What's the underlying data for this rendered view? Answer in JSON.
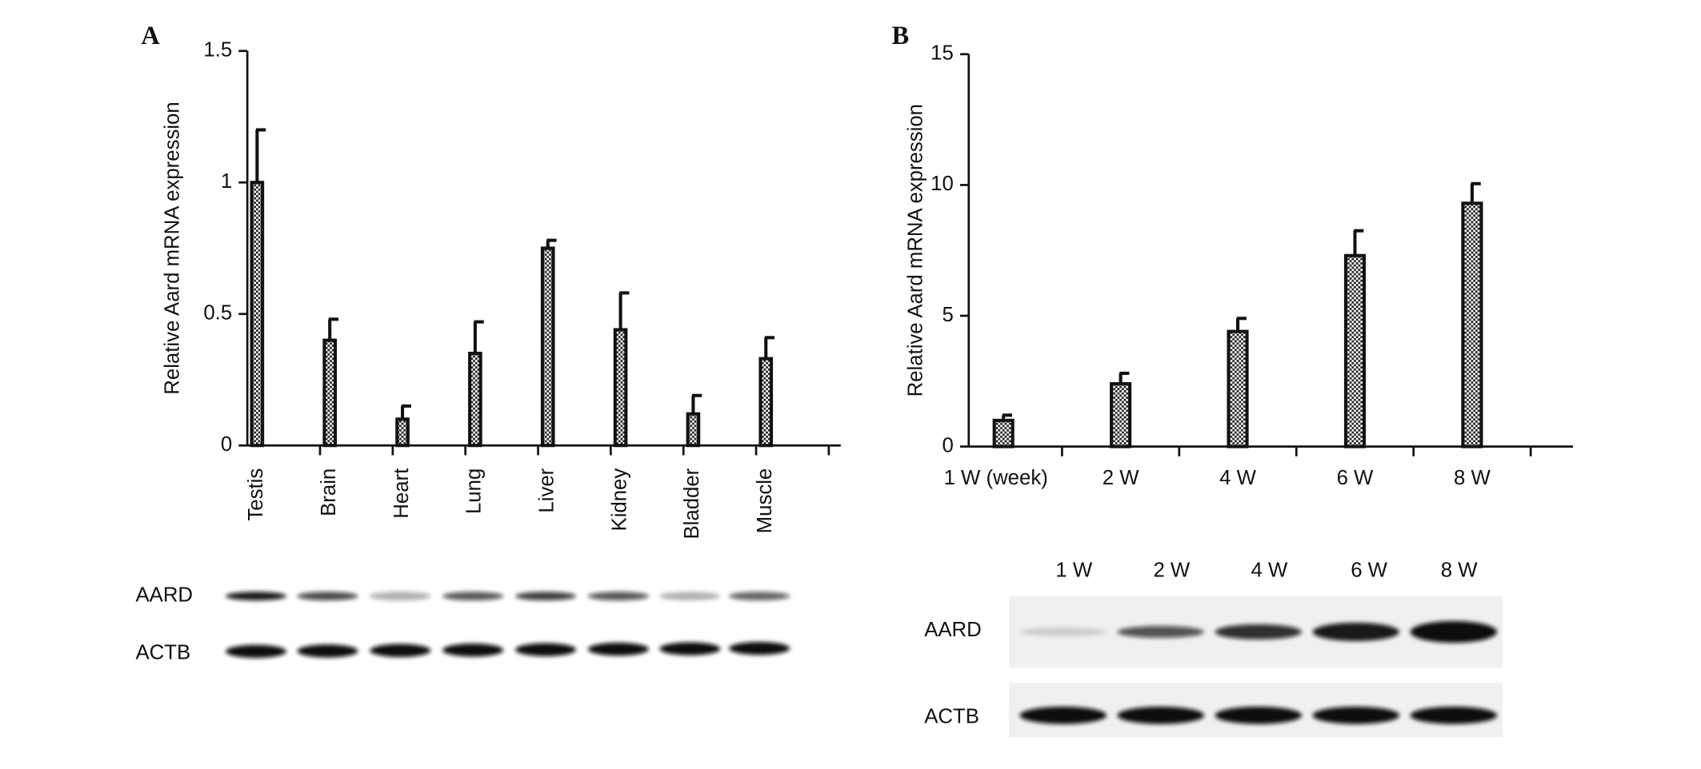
{
  "chart_data": [
    {
      "type": "bar",
      "panel": "A",
      "y_label": "Relative Aard mRNA expression",
      "categories": [
        "Testis",
        "Brain",
        "Heart",
        "Lung",
        "Liver",
        "Kidney",
        "Bladder",
        "Muscle"
      ],
      "values": [
        1.0,
        0.4,
        0.1,
        0.35,
        0.75,
        0.44,
        0.12,
        0.33
      ],
      "errors": [
        0.2,
        0.08,
        0.05,
        0.12,
        0.03,
        0.14,
        0.07,
        0.08
      ],
      "color": "#111111",
      "ylim": [
        0,
        1.5
      ],
      "yticks": [
        0,
        0.5,
        1,
        1.5
      ]
    },
    {
      "type": "bar",
      "panel": "B",
      "y_label": "Relative Aard mRNA expression",
      "categories": [
        "1 W (week)",
        "2 W",
        "4 W",
        "6 W",
        "8 W"
      ],
      "values": [
        1.0,
        2.4,
        4.4,
        7.3,
        9.3
      ],
      "errors": [
        0.2,
        0.4,
        0.5,
        0.95,
        0.75
      ],
      "color": "#111111",
      "ylim": [
        0,
        15
      ],
      "yticks": [
        0,
        5,
        10,
        15
      ]
    }
  ],
  "blots": [
    {
      "row_labels": [
        "AARD",
        "ACTB"
      ]
    },
    {
      "lane_labels": [
        "1 W",
        "2 W",
        "4 W",
        "6 W",
        "8 W"
      ],
      "row_labels": [
        "AARD",
        "ACTB"
      ]
    }
  ]
}
